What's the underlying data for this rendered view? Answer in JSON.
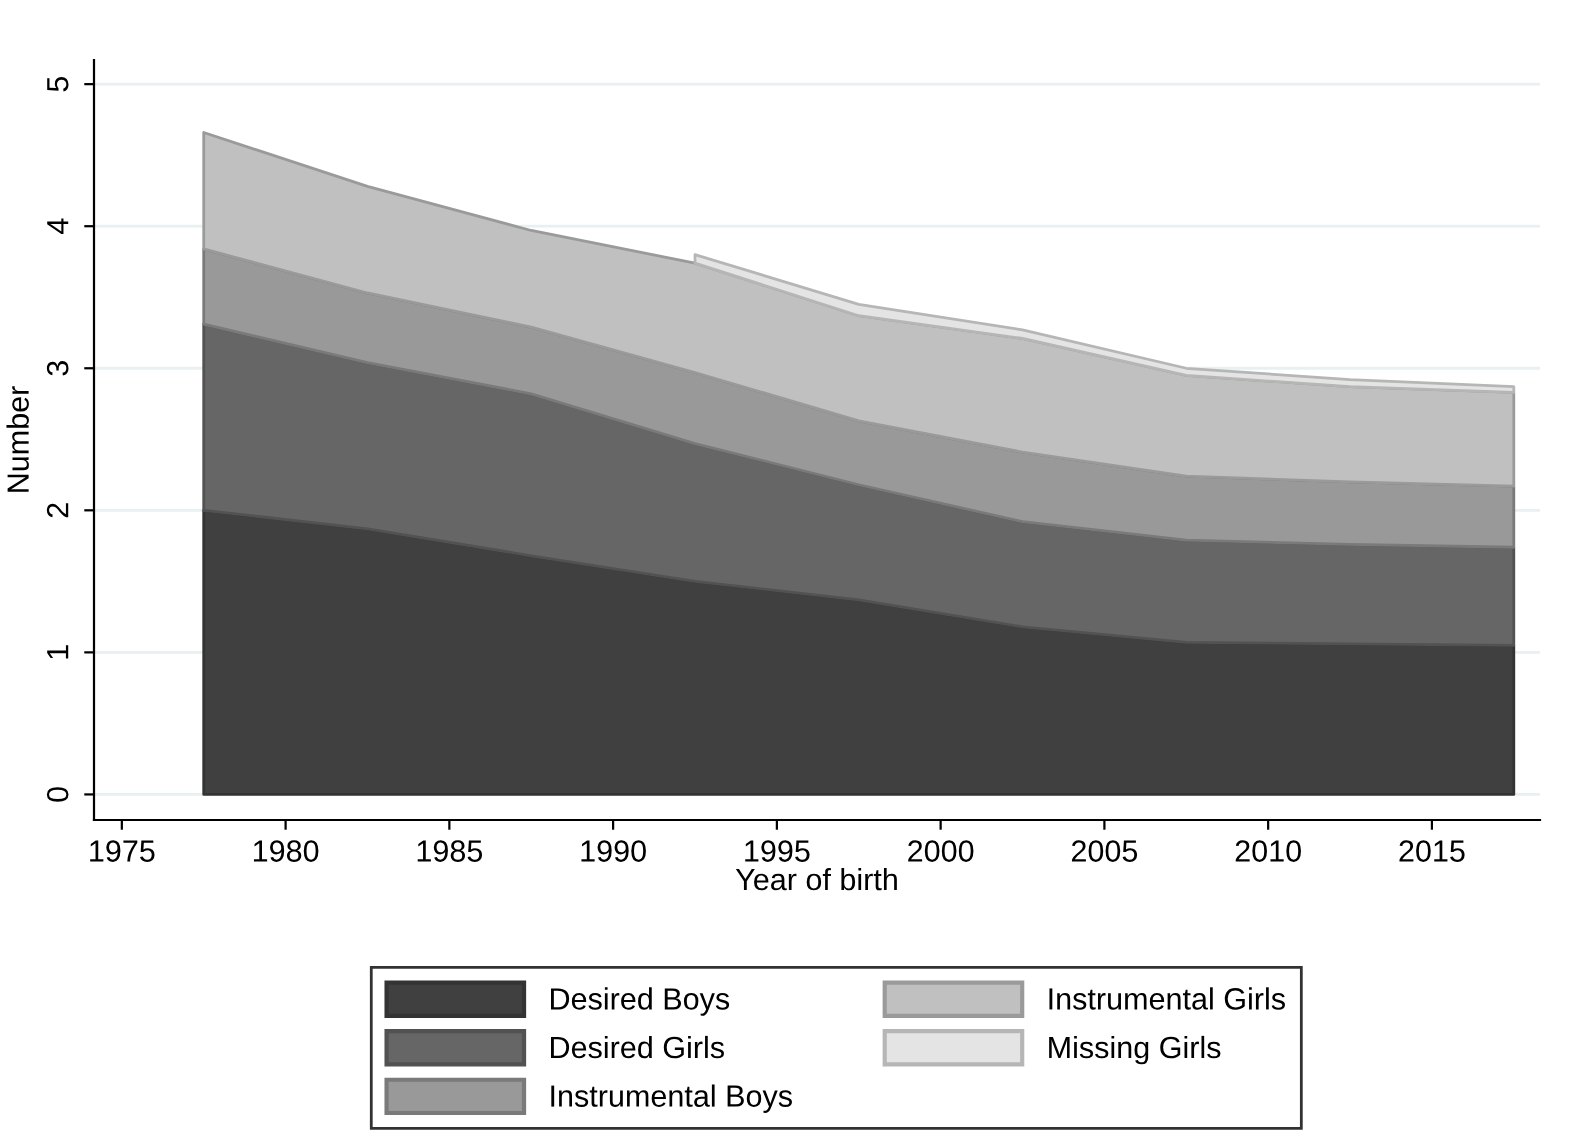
{
  "chart_data": {
    "type": "area",
    "stacked": true,
    "xlabel": "Year of birth",
    "ylabel": "Number",
    "x": [
      1977.5,
      1982.5,
      1987.5,
      1992.5,
      1997.5,
      2002.5,
      2007.5,
      2012.5,
      2017.5
    ],
    "series": [
      {
        "name": "Desired Boys",
        "color": "#404040",
        "values": [
          2.0,
          1.87,
          1.68,
          1.5,
          1.37,
          1.18,
          1.07,
          1.06,
          1.05
        ]
      },
      {
        "name": "Desired Girls",
        "color": "#666666",
        "values": [
          1.31,
          1.17,
          1.14,
          0.97,
          0.81,
          0.74,
          0.72,
          0.7,
          0.69
        ]
      },
      {
        "name": "Instrumental Boys",
        "color": "#999999",
        "values": [
          0.53,
          0.49,
          0.47,
          0.5,
          0.45,
          0.49,
          0.45,
          0.44,
          0.43
        ]
      },
      {
        "name": "Instrumental Girls",
        "color": "#c0c0c0",
        "values": [
          0.82,
          0.75,
          0.68,
          0.77,
          0.74,
          0.8,
          0.71,
          0.67,
          0.66
        ]
      },
      {
        "name": "Missing Girls",
        "color": "#e4e4e4",
        "values": [
          null,
          null,
          null,
          0.06,
          0.08,
          0.06,
          0.05,
          0.05,
          0.04
        ]
      }
    ],
    "xlim": [
      1974.15,
      2018.3
    ],
    "ylim": [
      -0.18,
      5.17
    ],
    "xticks": [
      1975,
      1980,
      1985,
      1990,
      1995,
      2000,
      2005,
      2010,
      2015
    ],
    "yticks": [
      0,
      1,
      2,
      3,
      4,
      5
    ],
    "grid": "y",
    "legend": "bottom"
  }
}
